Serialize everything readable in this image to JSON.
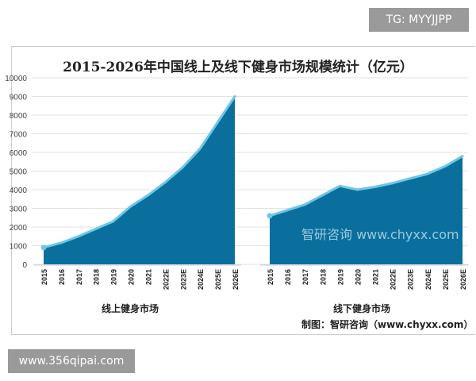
{
  "watermarks": {
    "tg": "TG: MYYJJPP",
    "site": "www.356qipai.com",
    "logo": "智研咨询 www.chyxx.com"
  },
  "source": "制图：智研咨询（www.chyxx.com）",
  "chart_data": {
    "type": "area",
    "title": "2015-2026年中国线上及线下健身市场规模统计（亿元）",
    "ylim": [
      0,
      10000
    ],
    "yticks": [
      0,
      1000,
      2000,
      3000,
      4000,
      5000,
      6000,
      7000,
      8000,
      9000,
      10000
    ],
    "grid": true,
    "categories": [
      "2015",
      "2016",
      "2017",
      "2018",
      "2019",
      "2020",
      "2021",
      "2022E",
      "2023E",
      "2024E",
      "2025E",
      "2026E"
    ],
    "colors": {
      "fill": "#0a6f9c",
      "line": "#6cc6e8"
    },
    "series": [
      {
        "name": "线上健身市场",
        "values": [
          900,
          1150,
          1500,
          1900,
          2300,
          3100,
          3700,
          4400,
          5200,
          6200,
          7600,
          9000
        ]
      },
      {
        "name": "线下健身市场",
        "values": [
          2600,
          2900,
          3200,
          3700,
          4200,
          4000,
          4150,
          4350,
          4600,
          4850,
          5250,
          5800
        ]
      }
    ]
  }
}
